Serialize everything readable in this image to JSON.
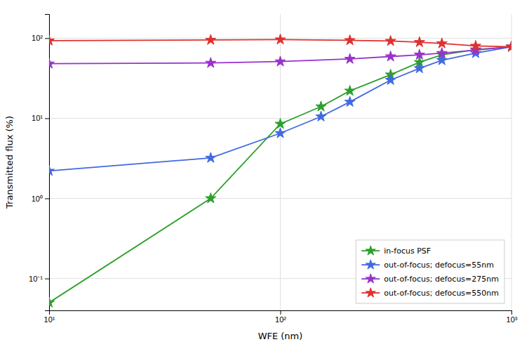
{
  "chart_data": {
    "type": "line",
    "xlabel": "WFE (nm)",
    "ylabel": "Transmitted flux (%)",
    "log": true,
    "xlim": [
      10,
      1000
    ],
    "ylim": [
      0.04,
      200
    ],
    "xticks": [
      {
        "value": 10,
        "label": "10¹"
      },
      {
        "value": 100,
        "label": "10²"
      },
      {
        "value": 1000,
        "label": "10³"
      }
    ],
    "yticks": [
      {
        "value": 0.1,
        "label": "10⁻¹"
      },
      {
        "value": 1,
        "label": "10⁰"
      },
      {
        "value": 10,
        "label": "10¹"
      },
      {
        "value": 100,
        "label": "10²"
      }
    ],
    "grid": true,
    "legend": "lower right",
    "series": [
      {
        "name": "in-focus PSF",
        "color": "#2ca02c",
        "marker": "star",
        "x": [
          10,
          50,
          100,
          150,
          200,
          300,
          400,
          500,
          700,
          1000
        ],
        "values": [
          0.05,
          1.0,
          8.5,
          14.0,
          22.0,
          35.0,
          50.0,
          62.0,
          72.0,
          78.0
        ]
      },
      {
        "name": "out-of-focus; defocus=55nm",
        "color": "#4169e1",
        "marker": "star",
        "x": [
          10,
          50,
          100,
          150,
          200,
          300,
          400,
          500,
          700,
          1000
        ],
        "values": [
          2.2,
          3.2,
          6.5,
          10.5,
          16.0,
          30.0,
          42.0,
          53.0,
          65.0,
          78.0
        ]
      },
      {
        "name": "out-of-focus; defocus=275nm",
        "color": "#9932cc",
        "marker": "star",
        "x": [
          10,
          50,
          100,
          200,
          300,
          400,
          500,
          700,
          1000
        ],
        "values": [
          48.0,
          49.0,
          51.0,
          55.0,
          59.0,
          62.0,
          65.0,
          71.0,
          78.0
        ]
      },
      {
        "name": "out-of-focus; defocus=550nm",
        "color": "#e03030",
        "marker": "star",
        "x": [
          10,
          50,
          100,
          200,
          300,
          400,
          500,
          700,
          1000
        ],
        "values": [
          93.0,
          95.0,
          96.0,
          94.0,
          92.0,
          89.0,
          86.0,
          80.0,
          78.0
        ]
      }
    ]
  }
}
